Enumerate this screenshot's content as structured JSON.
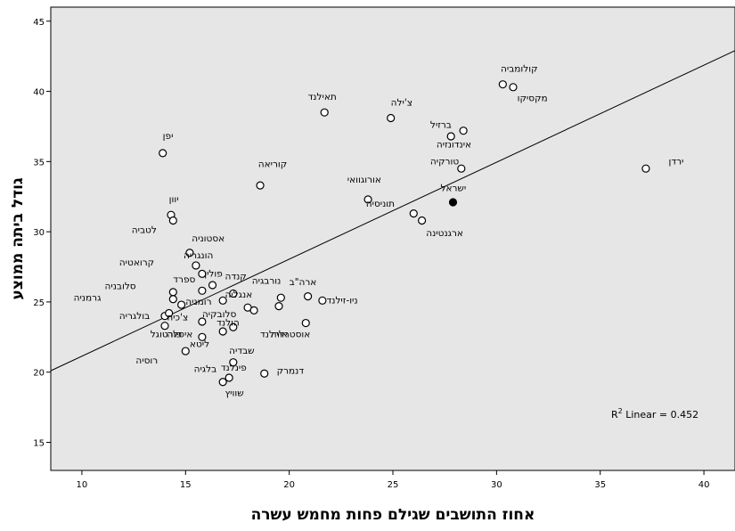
{
  "chart_data": {
    "type": "scatter",
    "xlabel": "אחוז התושבים שגילם פחות מחמש עשרה",
    "ylabel": "גודל ביתה ממוצע",
    "xlim": [
      8.5,
      41.5
    ],
    "ylim": [
      13,
      46
    ],
    "xticks": [
      10,
      15,
      20,
      25,
      30,
      35,
      40
    ],
    "yticks": [
      15,
      20,
      25,
      30,
      35,
      40,
      45
    ],
    "grid": false,
    "background": "#e6e6e6",
    "marker_color": "#000000",
    "highlight_color": "#000000",
    "fit_line": {
      "type": "linear",
      "annotation_base": "R",
      "annotation_sup": "2",
      "annotation_rest": " Linear = 0.452",
      "r2": 0.452,
      "x0": 8.5,
      "y0": 20.1,
      "x1": 41.5,
      "y1": 42.9
    },
    "points": [
      {
        "x": 30.3,
        "y": 40.5,
        "label": "קולומביה"
      },
      {
        "x": 30.8,
        "y": 40.3,
        "label": "מקסיקו"
      },
      {
        "x": 24.9,
        "y": 38.1,
        "label": "צ'ילה"
      },
      {
        "x": 21.7,
        "y": 38.5,
        "label": "תאילנד"
      },
      {
        "x": 27.8,
        "y": 36.8,
        "label": "ברזיל"
      },
      {
        "x": 28.4,
        "y": 37.2,
        "label": "אינדונזיה"
      },
      {
        "x": 28.3,
        "y": 34.5,
        "label": "טורקיה"
      },
      {
        "x": 37.2,
        "y": 34.5,
        "label": "ירדן"
      },
      {
        "x": 13.9,
        "y": 35.6,
        "label": "יפן"
      },
      {
        "x": 18.6,
        "y": 33.3,
        "label": "קוריאה"
      },
      {
        "x": 23.8,
        "y": 32.3,
        "label": "אורוגוואי"
      },
      {
        "x": 27.9,
        "y": 32.1,
        "label": "ישראל",
        "highlight": true
      },
      {
        "x": 26.0,
        "y": 31.3,
        "label": "תוניסיה"
      },
      {
        "x": 26.4,
        "y": 30.8,
        "label": "ארגנטינה"
      },
      {
        "x": 14.3,
        "y": 31.2,
        "label": "יוון"
      },
      {
        "x": 14.4,
        "y": 30.8,
        "label": "לטביה"
      },
      {
        "x": 15.2,
        "y": 28.5,
        "label": "אסטוניה"
      },
      {
        "x": 15.5,
        "y": 27.6,
        "label": "הונגריה"
      },
      {
        "x": 15.8,
        "y": 27.0,
        "label": "קרואטיה"
      },
      {
        "x": 16.3,
        "y": 26.2,
        "label": "פולין"
      },
      {
        "x": 15.8,
        "y": 25.8,
        "label": "ספרד"
      },
      {
        "x": 14.4,
        "y": 25.7,
        "label": "סלובניה"
      },
      {
        "x": 14.4,
        "y": 25.2,
        "label": "גרמניה"
      },
      {
        "x": 14.8,
        "y": 24.8,
        "label": "רומניה"
      },
      {
        "x": 16.8,
        "y": 25.1,
        "label": "קנדה"
      },
      {
        "x": 17.3,
        "y": 25.6,
        "label": "אנגליה"
      },
      {
        "x": 18.0,
        "y": 24.6,
        "label": "סלובקיה"
      },
      {
        "x": 18.3,
        "y": 24.4,
        "label": "הולנד"
      },
      {
        "x": 19.5,
        "y": 24.7,
        "label": "נורבגיה"
      },
      {
        "x": 19.6,
        "y": 25.3,
        "label": "נורבגיה"
      },
      {
        "x": 20.9,
        "y": 25.4,
        "label": "ארה\"ב"
      },
      {
        "x": 21.6,
        "y": 25.1,
        "label": "ניו-זילנד"
      },
      {
        "x": 14.0,
        "y": 24.0,
        "label": "בולגריה"
      },
      {
        "x": 14.2,
        "y": 24.2,
        "label": "בולגריה"
      },
      {
        "x": 14.0,
        "y": 23.3,
        "label": "צ'כיה"
      },
      {
        "x": 15.8,
        "y": 23.6,
        "label": "צ'כיה"
      },
      {
        "x": 16.8,
        "y": 22.9,
        "label": "ליטא"
      },
      {
        "x": 17.3,
        "y": 23.2,
        "label": "ליטא"
      },
      {
        "x": 15.8,
        "y": 22.5,
        "label": "פורטוגל"
      },
      {
        "x": 20.8,
        "y": 23.5,
        "label": "אוסטרליה"
      },
      {
        "x": 15.0,
        "y": 21.5,
        "label": "רוסיה"
      },
      {
        "x": 17.3,
        "y": 20.7,
        "label": "פינלנד"
      },
      {
        "x": 18.8,
        "y": 19.9,
        "label": "דנמרק"
      },
      {
        "x": 16.8,
        "y": 19.3,
        "label": "בלגיה"
      },
      {
        "x": 17.1,
        "y": 19.6,
        "label": "שוויץ"
      }
    ],
    "labels": [
      {
        "text": "קולומביה",
        "x": 30.2,
        "y": 41.4
      },
      {
        "text": "מקסיקו",
        "x": 31.0,
        "y": 39.3
      },
      {
        "text": "צ'ילה",
        "x": 24.9,
        "y": 39.0
      },
      {
        "text": "תאילנד",
        "x": 20.9,
        "y": 39.4
      },
      {
        "text": "ברזיל",
        "x": 26.8,
        "y": 37.4
      },
      {
        "text": "אינדונזיה",
        "x": 27.1,
        "y": 36.0
      },
      {
        "text": "טורקיה",
        "x": 26.8,
        "y": 34.8
      },
      {
        "text": "ירדן",
        "x": 38.3,
        "y": 34.8
      },
      {
        "text": "יפן",
        "x": 13.9,
        "y": 36.6
      },
      {
        "text": "קוריאה",
        "x": 18.5,
        "y": 34.6
      },
      {
        "text": "אורוגוואי",
        "x": 22.8,
        "y": 33.5
      },
      {
        "text": "ישראל",
        "x": 27.3,
        "y": 32.9
      },
      {
        "text": "תוניסיה",
        "x": 23.7,
        "y": 31.8
      },
      {
        "text": "ארגנטינה",
        "x": 26.6,
        "y": 29.7
      },
      {
        "text": "יוון",
        "x": 14.2,
        "y": 32.1
      },
      {
        "text": "לטביה",
        "x": 12.4,
        "y": 29.9
      },
      {
        "text": "אסטוניה",
        "x": 15.3,
        "y": 29.3
      },
      {
        "text": "הונגריה",
        "x": 14.9,
        "y": 28.1
      },
      {
        "text": "קרואטיה",
        "x": 11.8,
        "y": 27.6
      },
      {
        "text": "פולין",
        "x": 15.9,
        "y": 26.8
      },
      {
        "text": "ספרד",
        "x": 14.4,
        "y": 26.4
      },
      {
        "text": "סלובניה",
        "x": 11.1,
        "y": 25.9
      },
      {
        "text": "גרמניה",
        "x": 9.6,
        "y": 25.1
      },
      {
        "text": "רומניה",
        "x": 15.0,
        "y": 24.8
      },
      {
        "text": "קנדה",
        "x": 16.9,
        "y": 26.6
      },
      {
        "text": "נורבגיה",
        "x": 18.2,
        "y": 26.3
      },
      {
        "text": "אנגליה",
        "x": 16.9,
        "y": 25.3
      },
      {
        "text": "ארה\"ב",
        "x": 20.0,
        "y": 26.2
      },
      {
        "text": "ניו-זילנד",
        "x": 21.8,
        "y": 24.9
      },
      {
        "text": "סלובקיה",
        "x": 15.8,
        "y": 23.9
      },
      {
        "text": "בולגריה",
        "x": 11.8,
        "y": 23.8
      },
      {
        "text": "צ'כיה",
        "x": 14.1,
        "y": 23.7
      },
      {
        "text": "הולנד",
        "x": 16.5,
        "y": 23.3
      },
      {
        "text": "פורטוגל",
        "x": 13.3,
        "y": 22.5
      },
      {
        "text": "איסלה",
        "x": 14.1,
        "y": 22.5
      },
      {
        "text": "אירלנד",
        "x": 18.6,
        "y": 22.5
      },
      {
        "text": "אוסטרליה",
        "x": 19.1,
        "y": 22.5
      },
      {
        "text": "ליטא",
        "x": 15.2,
        "y": 21.8
      },
      {
        "text": "שבדיה",
        "x": 17.1,
        "y": 21.3
      },
      {
        "text": "רוסיה",
        "x": 12.6,
        "y": 20.6
      },
      {
        "text": "פינלנד",
        "x": 16.7,
        "y": 20.1
      },
      {
        "text": "בלגיה",
        "x": 15.4,
        "y": 20.0
      },
      {
        "text": "דנמרק",
        "x": 19.4,
        "y": 19.9
      },
      {
        "text": "שוויץ",
        "x": 16.9,
        "y": 18.3
      }
    ]
  }
}
